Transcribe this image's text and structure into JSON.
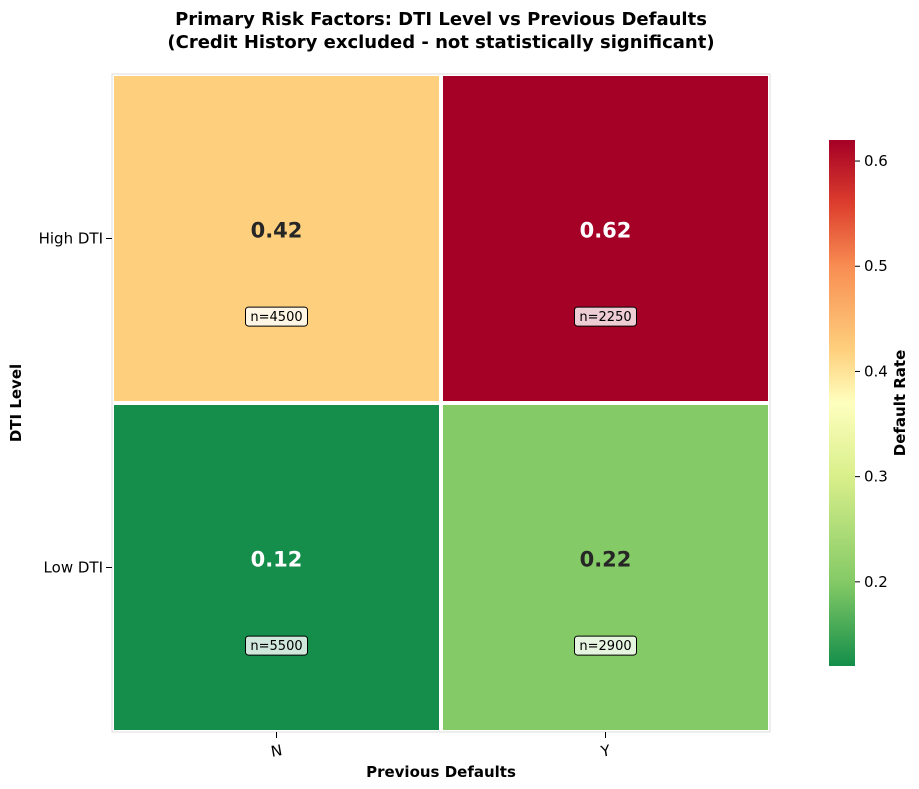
{
  "chart_data": {
    "type": "heatmap",
    "title": "Primary Risk Factors: DTI Level vs Previous Defaults",
    "subtitle": "(Credit History excluded - not statistically significant)",
    "xlabel": "Previous Defaults",
    "ylabel": "DTI Level",
    "x_categories": [
      "N",
      "Y"
    ],
    "y_categories": [
      "High DTI",
      "Low DTI"
    ],
    "values": [
      [
        0.42,
        0.62
      ],
      [
        0.12,
        0.22
      ]
    ],
    "value_labels": [
      [
        "0.42",
        "0.62"
      ],
      [
        "0.12",
        "0.22"
      ]
    ],
    "counts": [
      [
        "n=4500",
        "n=2250"
      ],
      [
        "n=5500",
        "n=2900"
      ]
    ],
    "colorbar": {
      "label": "Default Rate",
      "range": [
        0.12,
        0.62
      ],
      "ticks": [
        "0.2",
        "0.3",
        "0.4",
        "0.5",
        "0.6"
      ],
      "colormap": "RdYlGn_r"
    },
    "cell_colors": [
      [
        "#fed07e",
        "#a50026"
      ],
      [
        "#148e4a",
        "#84ca66"
      ]
    ],
    "value_text_colors": [
      [
        "#262626",
        "#ffffff"
      ],
      [
        "#ffffff",
        "#262626"
      ]
    ],
    "grid": false
  }
}
